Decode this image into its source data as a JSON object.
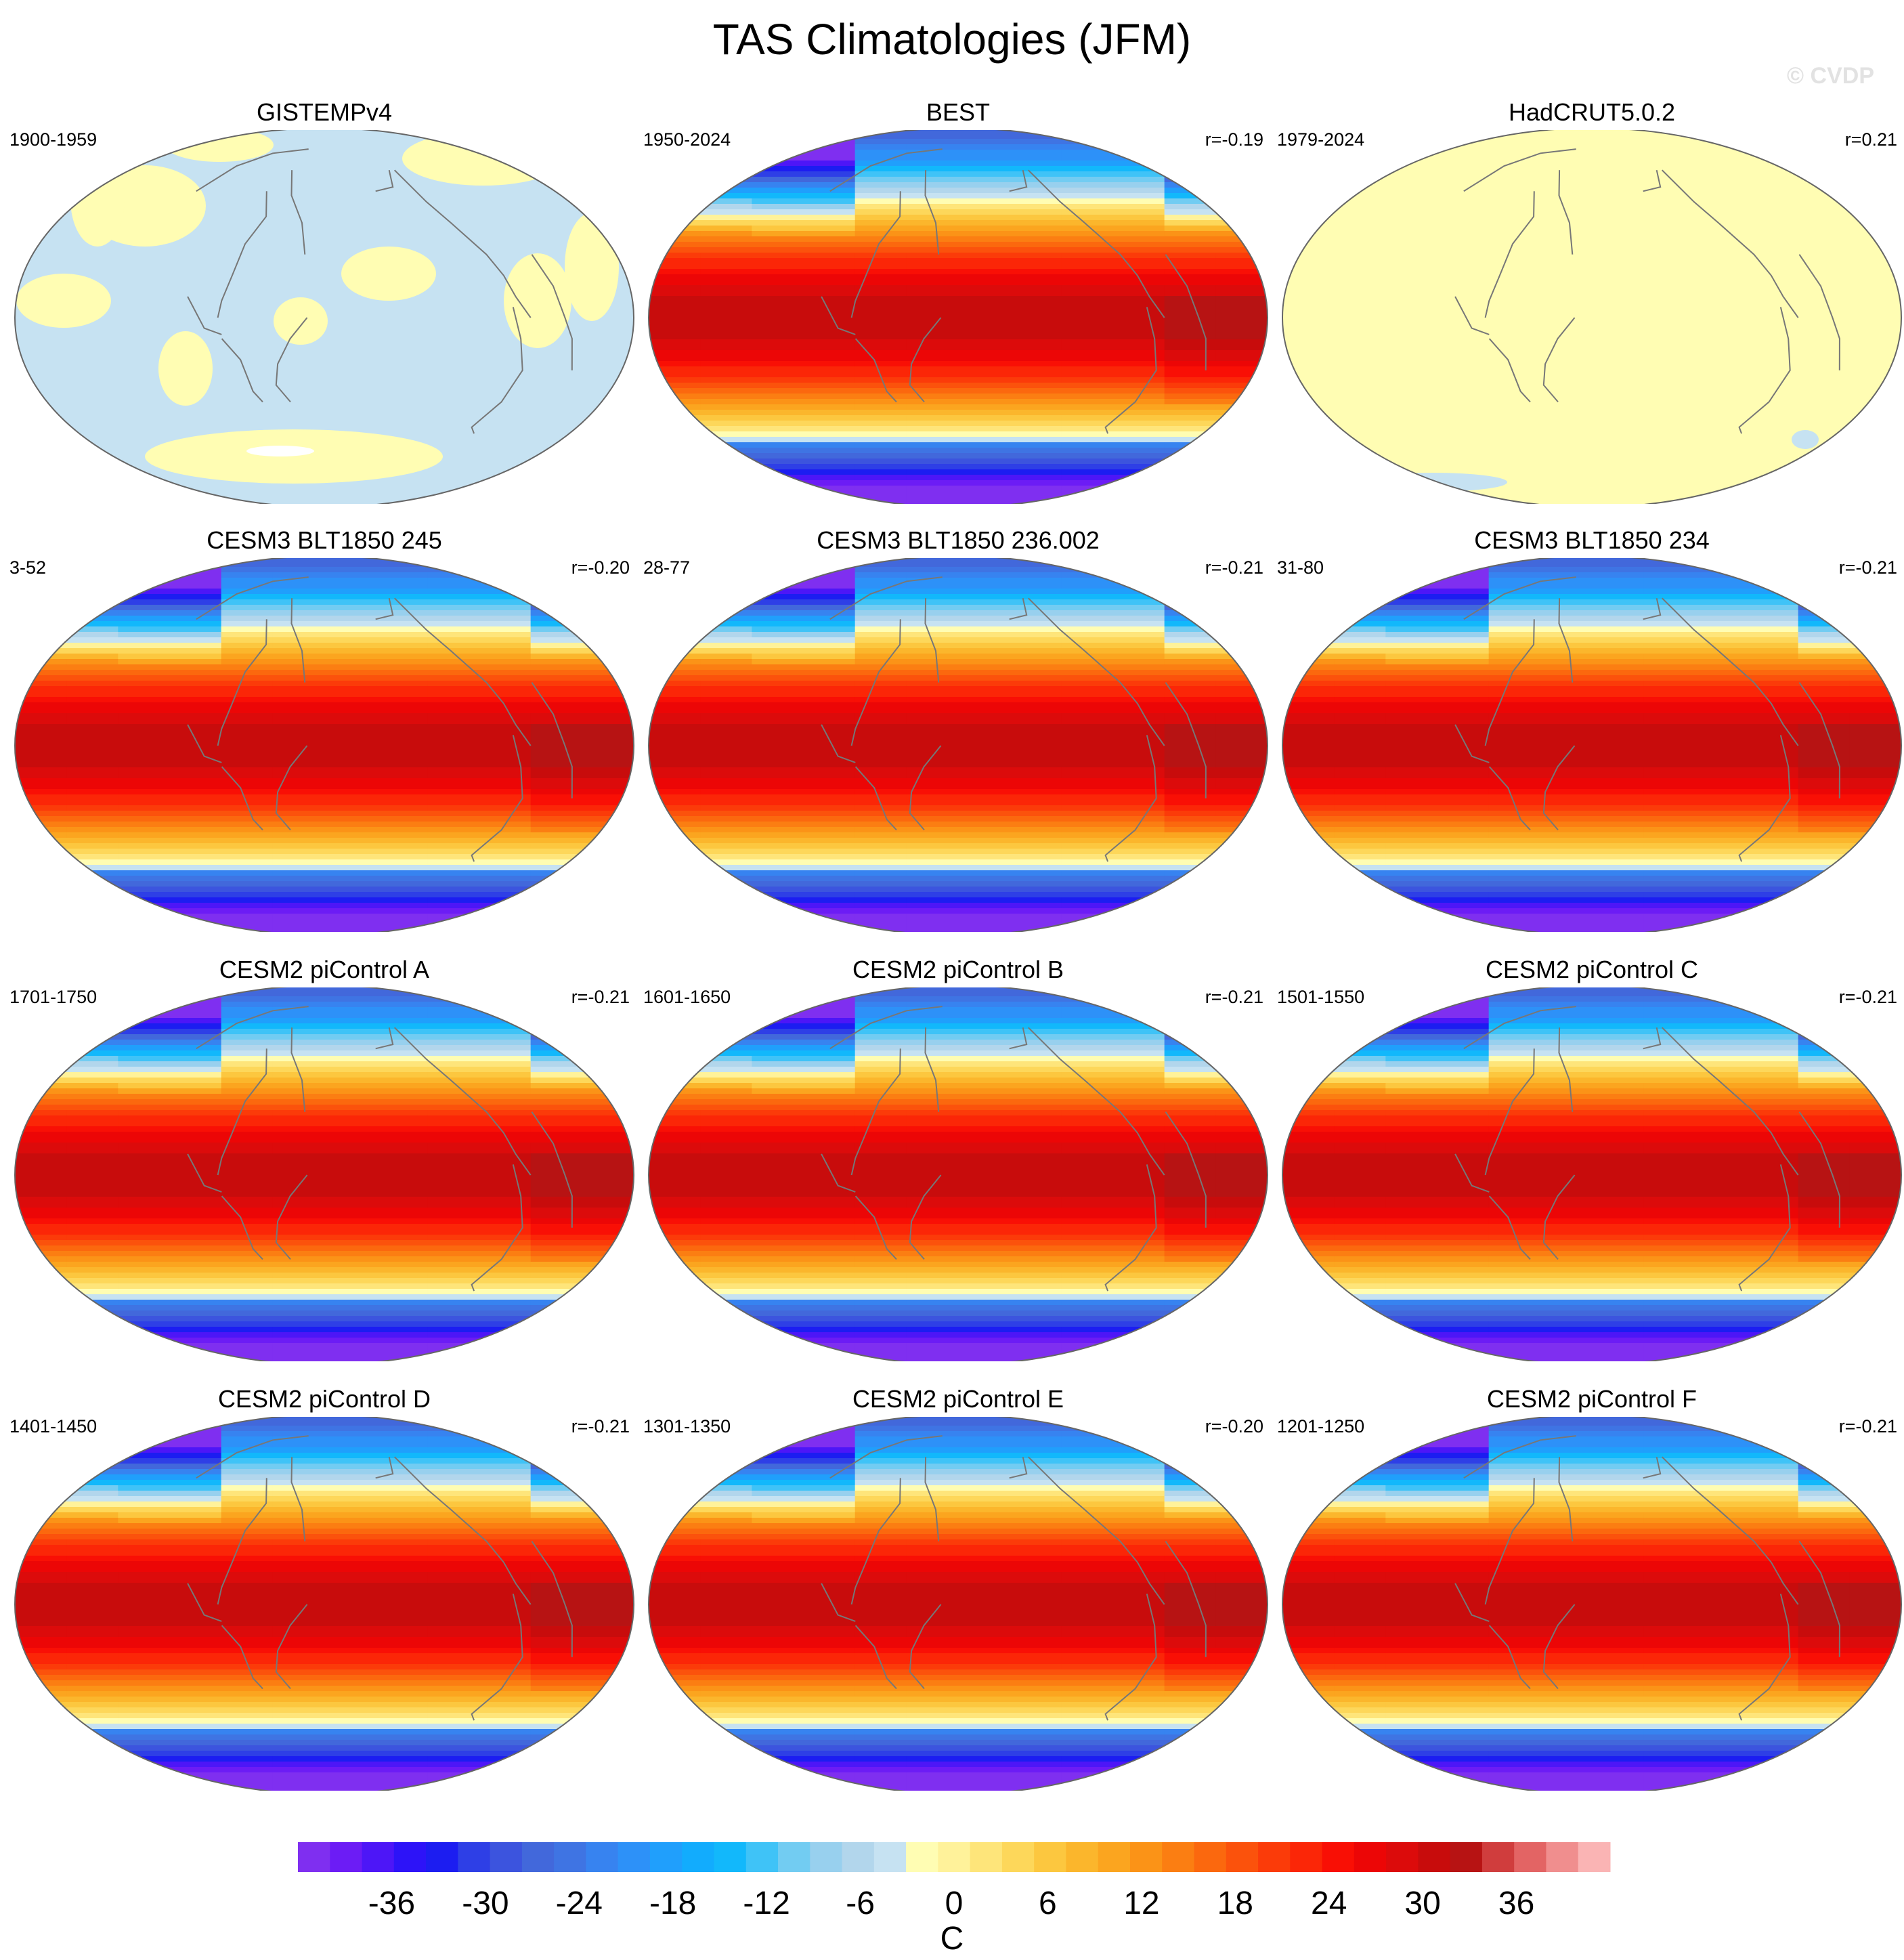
{
  "chart_data": {
    "type": "contour-map-grid",
    "title": "TAS Climatologies (JFM)",
    "watermark": "© CVDP",
    "units": "C",
    "colorbar": {
      "tick_labels": [
        "-36",
        "-30",
        "-24",
        "-18",
        "-12",
        "-6",
        "0",
        "6",
        "12",
        "18",
        "24",
        "30",
        "36"
      ],
      "tick_values": [
        -36,
        -30,
        -24,
        -18,
        -12,
        -6,
        0,
        6,
        12,
        18,
        24,
        30,
        36
      ],
      "range": [
        -42,
        42
      ],
      "interval": 2,
      "colors": [
        "#7f2ff0",
        "#6c1cf5",
        "#4d16f7",
        "#2d13f8",
        "#1c1df1",
        "#2e3fe6",
        "#3c54de",
        "#4268db",
        "#3f74e3",
        "#3783f0",
        "#2d91f8",
        "#209ffc",
        "#12acfd",
        "#12b8fb",
        "#3fc3f7",
        "#72ccf2",
        "#98d0ee",
        "#b2d6ec",
        "#c6e2f2",
        "#fffdb3",
        "#fff29a",
        "#fee57a",
        "#fdd75a",
        "#fcc73f",
        "#fbb62c",
        "#fba51f",
        "#fb9317",
        "#fb7e12",
        "#fb680e",
        "#fb520c",
        "#fb3b09",
        "#fb2607",
        "#f90f05",
        "#ec0606",
        "#dc0b0b",
        "#c80c0c",
        "#b71313",
        "#d03d3d",
        "#e36464",
        "#f08e8e",
        "#fab4b4"
      ]
    },
    "panels": [
      {
        "title": "GISTEMPv4",
        "period": "1900-1959",
        "corr": "",
        "pattern": "gistemp"
      },
      {
        "title": "BEST",
        "period": "1950-2024",
        "corr": "r=-0.19",
        "pattern": "climo"
      },
      {
        "title": "HadCRUT5.0.2",
        "period": "1979-2024",
        "corr": "r=0.21",
        "pattern": "hadcrut"
      },
      {
        "title": "CESM3 BLT1850 245",
        "period": "3-52",
        "corr": "r=-0.20",
        "pattern": "climo"
      },
      {
        "title": "CESM3 BLT1850 236.002",
        "period": "28-77",
        "corr": "r=-0.21",
        "pattern": "climo"
      },
      {
        "title": "CESM3 BLT1850 234",
        "period": "31-80",
        "corr": "r=-0.21",
        "pattern": "climo"
      },
      {
        "title": "CESM2 piControl A",
        "period": "1701-1750",
        "corr": "r=-0.21",
        "pattern": "climo"
      },
      {
        "title": "CESM2 piControl B",
        "period": "1601-1650",
        "corr": "r=-0.21",
        "pattern": "climo"
      },
      {
        "title": "CESM2 piControl C",
        "period": "1501-1550",
        "corr": "r=-0.21",
        "pattern": "climo"
      },
      {
        "title": "CESM2 piControl D",
        "period": "1401-1450",
        "corr": "r=-0.21",
        "pattern": "climo"
      },
      {
        "title": "CESM2 piControl E",
        "period": "1301-1350",
        "corr": "r=-0.20",
        "pattern": "climo"
      },
      {
        "title": "CESM2 piControl F",
        "period": "1201-1250",
        "corr": "r=-0.21",
        "pattern": "climo"
      }
    ]
  }
}
